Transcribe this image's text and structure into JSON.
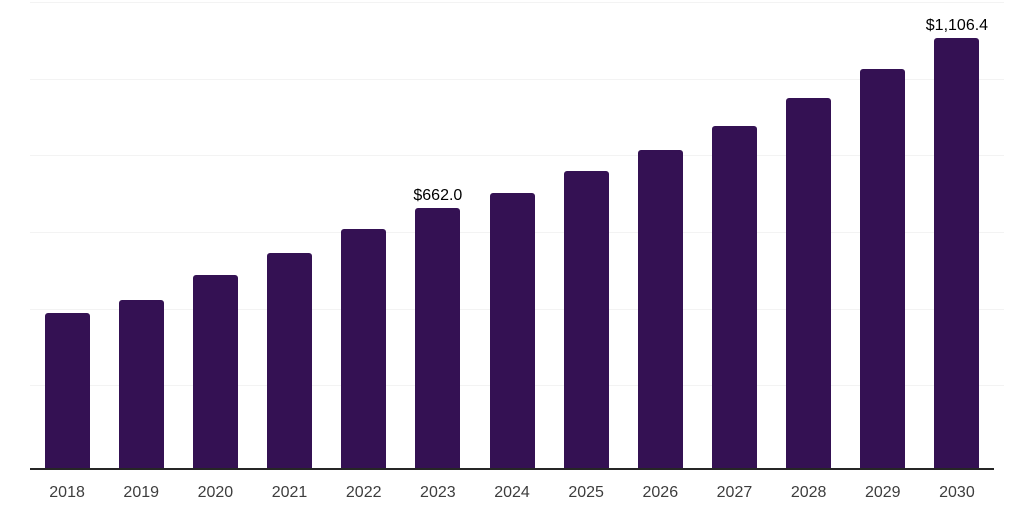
{
  "chart_data": {
    "type": "bar",
    "title": "",
    "xlabel": "",
    "ylabel": "",
    "categories": [
      "2018",
      "2019",
      "2020",
      "2021",
      "2022",
      "2023",
      "2024",
      "2025",
      "2026",
      "2027",
      "2028",
      "2029",
      "2030"
    ],
    "values": [
      390,
      422,
      487,
      546,
      609,
      662.0,
      701,
      758,
      814,
      877,
      949,
      1026,
      1106.4
    ],
    "data_labels": [
      "",
      "",
      "",
      "",
      "",
      "$662.0",
      "",
      "",
      "",
      "",
      "",
      "",
      "$1,106.4"
    ],
    "value_prefix": "$",
    "ylim": [
      0,
      1200
    ],
    "gridline_values": [
      200,
      400,
      600,
      800,
      1000,
      1200
    ],
    "grid": "horizontal-light",
    "legend": "none",
    "colors": {
      "bar": "#341153",
      "axis": "#262626",
      "gridline": "#f3f3f3",
      "year_label": "#3d3d3d",
      "value_label": "#000000"
    }
  }
}
